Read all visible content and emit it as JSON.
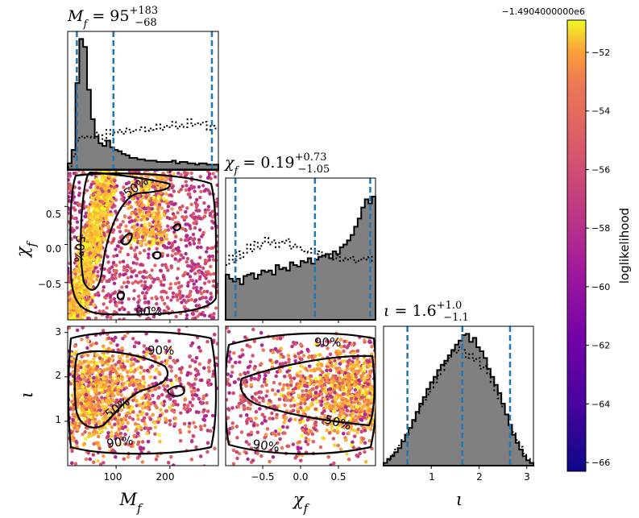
{
  "chart_data": {
    "type": "corner",
    "parameters": [
      {
        "key": "Mf",
        "symbol": "M",
        "sub": "f",
        "axis_label": "M_f",
        "range": [
          10,
          290
        ],
        "ticks": [
          100,
          200
        ],
        "summary": {
          "median": "95",
          "plus": "+183",
          "minus": "−68"
        },
        "title_prefix": "",
        "title_value": " = 95",
        "quantiles": [
          27,
          95,
          278
        ]
      },
      {
        "key": "chif",
        "symbol": "χ",
        "sub": "f",
        "axis_label": "χ_f",
        "range": [
          -0.99,
          0.99
        ],
        "ticks": [
          -0.5,
          0.0,
          0.5
        ],
        "summary": {
          "median": "0.19",
          "plus": "+0.73",
          "minus": "−1.05"
        },
        "title_value": " = 0.19",
        "quantiles": [
          -0.86,
          0.19,
          0.92
        ]
      },
      {
        "key": "iota",
        "symbol": "ι",
        "sub": "",
        "axis_label": "ι",
        "range": [
          0.0,
          3.14
        ],
        "ticks": [
          1,
          2,
          3
        ],
        "summary": {
          "median": "1.6",
          "plus": "+1.0",
          "minus": "−1.1"
        },
        "title_value": " = 1.6",
        "quantiles": [
          0.5,
          1.65,
          2.65
        ]
      }
    ],
    "tick_labels": {
      "Mf": [
        "100",
        "200"
      ],
      "chif_x": [
        "−0.5",
        "0.0",
        "0.5"
      ],
      "chif_y": [
        "0.5",
        "0.0",
        "−0.5"
      ],
      "iota_x": [
        "1",
        "2",
        "3"
      ],
      "iota_y": [
        "3",
        "2",
        "1"
      ]
    },
    "histograms": {
      "Mf": {
        "posterior": [
          0.05,
          0.15,
          0.65,
          0.98,
          0.92,
          0.6,
          0.38,
          0.25,
          0.2,
          0.18,
          0.22,
          0.17,
          0.15,
          0.14,
          0.12,
          0.11,
          0.09,
          0.09,
          0.08,
          0.08,
          0.07,
          0.07,
          0.07,
          0.06,
          0.06,
          0.06,
          0.06,
          0.07,
          0.05,
          0.06,
          0.06,
          0.05,
          0.05,
          0.04,
          0.05,
          0.05,
          0.04,
          0.04,
          0.04
        ],
        "prior": [
          0.02,
          0.1,
          0.22,
          0.25,
          0.24,
          0.25,
          0.24,
          0.28,
          0.26,
          0.22,
          0.3,
          0.26,
          0.28,
          0.3,
          0.27,
          0.31,
          0.28,
          0.3,
          0.3,
          0.32,
          0.29,
          0.31,
          0.3,
          0.34,
          0.3,
          0.33,
          0.32,
          0.36,
          0.31,
          0.34,
          0.32,
          0.38,
          0.33,
          0.35,
          0.34,
          0.36,
          0.3,
          0.33,
          0.31
        ]
      },
      "chif": {
        "posterior": [
          0.33,
          0.3,
          0.28,
          0.3,
          0.26,
          0.32,
          0.33,
          0.34,
          0.3,
          0.33,
          0.36,
          0.35,
          0.36,
          0.33,
          0.4,
          0.37,
          0.38,
          0.36,
          0.42,
          0.4,
          0.39,
          0.43,
          0.42,
          0.45,
          0.41,
          0.44,
          0.46,
          0.47,
          0.48,
          0.45,
          0.5,
          0.48,
          0.53,
          0.55,
          0.58,
          0.62,
          0.68,
          0.74,
          0.82,
          0.88,
          0.85,
          0.9
        ],
        "prior": [
          0.4,
          0.47,
          0.42,
          0.5,
          0.45,
          0.49,
          0.55,
          0.5,
          0.57,
          0.52,
          0.56,
          0.6,
          0.55,
          0.58,
          0.53,
          0.57,
          0.56,
          0.59,
          0.52,
          0.55,
          0.53,
          0.51,
          0.5,
          0.49,
          0.52,
          0.48,
          0.5,
          0.47,
          0.46,
          0.48,
          0.44,
          0.47,
          0.43,
          0.45,
          0.44,
          0.46,
          0.42,
          0.43,
          0.45,
          0.44,
          0.46,
          0.43
        ]
      },
      "iota": {
        "posterior": [
          0.02,
          0.05,
          0.07,
          0.1,
          0.13,
          0.18,
          0.23,
          0.28,
          0.34,
          0.4,
          0.46,
          0.51,
          0.57,
          0.62,
          0.66,
          0.71,
          0.75,
          0.78,
          0.82,
          0.86,
          0.9,
          0.93,
          0.97,
          0.98,
          0.92,
          0.95,
          0.88,
          0.85,
          0.8,
          0.72,
          0.66,
          0.6,
          0.54,
          0.46,
          0.38,
          0.3,
          0.23,
          0.17,
          0.12,
          0.07,
          0.04,
          0.02
        ],
        "prior": [
          0.02,
          0.04,
          0.08,
          0.12,
          0.15,
          0.19,
          0.24,
          0.28,
          0.33,
          0.39,
          0.44,
          0.49,
          0.53,
          0.58,
          0.62,
          0.67,
          0.71,
          0.76,
          0.8,
          0.85,
          0.84,
          0.88,
          0.86,
          0.8,
          0.83,
          0.78,
          0.8,
          0.72,
          0.74,
          0.68,
          0.62,
          0.56,
          0.5,
          0.44,
          0.38,
          0.31,
          0.25,
          0.19,
          0.14,
          0.09,
          0.05,
          0.02
        ]
      }
    },
    "contours": [
      "50%",
      "90%"
    ],
    "colorbar": {
      "label": "loglikelihood",
      "offset_text": "−1.4904000000e6",
      "range": [
        -66.3,
        -50.9
      ],
      "ticks": [
        -52,
        -54,
        -56,
        -58,
        -60,
        -62,
        -64,
        -66
      ],
      "tick_labels": [
        "−52",
        "−54",
        "−56",
        "−58",
        "−60",
        "−62",
        "−64",
        "−66"
      ],
      "colormap": "plasma"
    },
    "colors": {
      "posterior_fill": "#808080",
      "quantile_line": "#1f77b4",
      "contour": "#000000"
    }
  }
}
